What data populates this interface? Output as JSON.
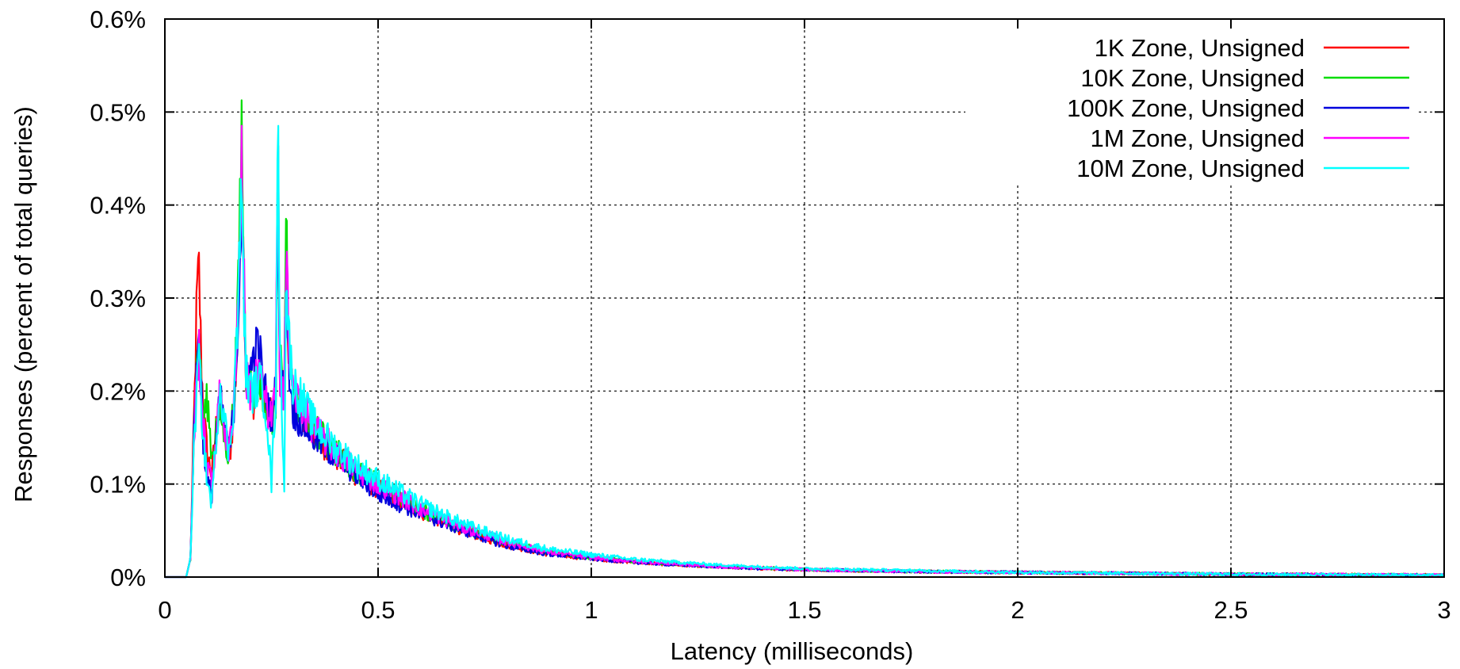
{
  "chart_data": {
    "type": "line",
    "title": "",
    "xlabel": "Latency (milliseconds)",
    "ylabel": "Responses (percent of total queries)",
    "xlim": [
      0,
      3
    ],
    "ylim": [
      0,
      0.6
    ],
    "grid": true,
    "legend_position": "top-right",
    "x_ticks": [
      0,
      0.5,
      1,
      1.5,
      2,
      2.5,
      3
    ],
    "x_tick_labels": [
      "0",
      "0.5",
      "1",
      "1.5",
      "2",
      "2.5",
      "3"
    ],
    "y_ticks": [
      0,
      0.1,
      0.2,
      0.3,
      0.4,
      0.5,
      0.6
    ],
    "y_tick_labels": [
      "0%",
      "0.1%",
      "0.2%",
      "0.3%",
      "0.4%",
      "0.5%",
      "0.6%"
    ],
    "series": [
      {
        "name": "1K Zone, Unsigned",
        "color": "#ff0000",
        "x": [
          0,
          0.05,
          0.06,
          0.07,
          0.075,
          0.08,
          0.085,
          0.09,
          0.1,
          0.11,
          0.12,
          0.13,
          0.14,
          0.15,
          0.16,
          0.17,
          0.18,
          0.185,
          0.19,
          0.2,
          0.21,
          0.22,
          0.23,
          0.24,
          0.25,
          0.26,
          0.265,
          0.27,
          0.28,
          0.285,
          0.29,
          0.3,
          0.35,
          0.4,
          0.45,
          0.5,
          0.6,
          0.7,
          0.8,
          0.9,
          1.0,
          1.1,
          1.2,
          1.3,
          1.4,
          1.5,
          1.75,
          2.0,
          2.5,
          3.0
        ],
        "y": [
          0,
          0,
          0.02,
          0.2,
          0.3,
          0.33,
          0.24,
          0.18,
          0.13,
          0.11,
          0.16,
          0.19,
          0.15,
          0.12,
          0.17,
          0.25,
          0.44,
          0.33,
          0.22,
          0.2,
          0.19,
          0.21,
          0.2,
          0.18,
          0.17,
          0.19,
          0.47,
          0.22,
          0.2,
          0.37,
          0.24,
          0.19,
          0.155,
          0.13,
          0.11,
          0.095,
          0.07,
          0.05,
          0.035,
          0.025,
          0.02,
          0.016,
          0.013,
          0.011,
          0.009,
          0.008,
          0.006,
          0.005,
          0.003,
          0.002
        ]
      },
      {
        "name": "10K Zone, Unsigned",
        "color": "#00dd00",
        "x": [
          0,
          0.05,
          0.06,
          0.07,
          0.075,
          0.08,
          0.085,
          0.09,
          0.1,
          0.11,
          0.12,
          0.13,
          0.14,
          0.15,
          0.16,
          0.17,
          0.18,
          0.185,
          0.19,
          0.2,
          0.21,
          0.22,
          0.23,
          0.24,
          0.25,
          0.26,
          0.265,
          0.27,
          0.28,
          0.285,
          0.29,
          0.3,
          0.35,
          0.4,
          0.45,
          0.5,
          0.6,
          0.7,
          0.8,
          0.9,
          1.0,
          1.1,
          1.2,
          1.3,
          1.4,
          1.5,
          1.75,
          2.0,
          2.5,
          3.0
        ],
        "y": [
          0,
          0,
          0.02,
          0.18,
          0.23,
          0.26,
          0.2,
          0.17,
          0.19,
          0.13,
          0.16,
          0.18,
          0.15,
          0.13,
          0.18,
          0.27,
          0.485,
          0.34,
          0.22,
          0.21,
          0.2,
          0.21,
          0.2,
          0.18,
          0.17,
          0.19,
          0.46,
          0.23,
          0.2,
          0.39,
          0.24,
          0.19,
          0.16,
          0.135,
          0.115,
          0.1,
          0.072,
          0.052,
          0.037,
          0.027,
          0.021,
          0.017,
          0.014,
          0.011,
          0.01,
          0.008,
          0.006,
          0.005,
          0.003,
          0.002
        ]
      },
      {
        "name": "100K Zone, Unsigned",
        "color": "#0000dd",
        "x": [
          0,
          0.05,
          0.06,
          0.07,
          0.075,
          0.08,
          0.085,
          0.09,
          0.1,
          0.11,
          0.12,
          0.13,
          0.14,
          0.15,
          0.16,
          0.17,
          0.18,
          0.185,
          0.19,
          0.2,
          0.21,
          0.22,
          0.23,
          0.24,
          0.25,
          0.26,
          0.265,
          0.27,
          0.28,
          0.285,
          0.29,
          0.3,
          0.35,
          0.4,
          0.45,
          0.5,
          0.6,
          0.7,
          0.8,
          0.9,
          1.0,
          1.1,
          1.2,
          1.3,
          1.4,
          1.5,
          1.75,
          2.0,
          2.5,
          3.0
        ],
        "y": [
          0,
          0,
          0.02,
          0.19,
          0.22,
          0.275,
          0.21,
          0.15,
          0.1,
          0.09,
          0.15,
          0.19,
          0.16,
          0.13,
          0.17,
          0.26,
          0.4,
          0.3,
          0.21,
          0.22,
          0.24,
          0.25,
          0.21,
          0.19,
          0.17,
          0.2,
          0.43,
          0.22,
          0.19,
          0.35,
          0.23,
          0.18,
          0.15,
          0.13,
          0.11,
          0.09,
          0.068,
          0.05,
          0.034,
          0.025,
          0.02,
          0.016,
          0.013,
          0.011,
          0.009,
          0.008,
          0.006,
          0.005,
          0.003,
          0.002
        ]
      },
      {
        "name": "1M Zone, Unsigned",
        "color": "#ff00ff",
        "x": [
          0,
          0.05,
          0.06,
          0.07,
          0.075,
          0.08,
          0.085,
          0.09,
          0.1,
          0.11,
          0.12,
          0.13,
          0.14,
          0.15,
          0.16,
          0.17,
          0.18,
          0.185,
          0.19,
          0.2,
          0.21,
          0.22,
          0.23,
          0.24,
          0.25,
          0.26,
          0.265,
          0.27,
          0.28,
          0.285,
          0.29,
          0.3,
          0.35,
          0.4,
          0.45,
          0.5,
          0.6,
          0.7,
          0.8,
          0.9,
          1.0,
          1.1,
          1.2,
          1.3,
          1.4,
          1.5,
          1.75,
          2.0,
          2.5,
          3.0
        ],
        "y": [
          0,
          0,
          0.02,
          0.17,
          0.21,
          0.25,
          0.2,
          0.16,
          0.12,
          0.1,
          0.15,
          0.2,
          0.16,
          0.13,
          0.18,
          0.27,
          0.45,
          0.33,
          0.22,
          0.2,
          0.21,
          0.22,
          0.2,
          0.18,
          0.17,
          0.2,
          0.44,
          0.22,
          0.2,
          0.36,
          0.25,
          0.2,
          0.16,
          0.135,
          0.115,
          0.1,
          0.073,
          0.053,
          0.038,
          0.027,
          0.021,
          0.017,
          0.014,
          0.011,
          0.01,
          0.008,
          0.006,
          0.005,
          0.003,
          0.002
        ]
      },
      {
        "name": "10M Zone, Unsigned",
        "color": "#00ffff",
        "x": [
          0,
          0.05,
          0.06,
          0.07,
          0.075,
          0.08,
          0.085,
          0.09,
          0.1,
          0.11,
          0.12,
          0.13,
          0.14,
          0.15,
          0.16,
          0.17,
          0.18,
          0.185,
          0.19,
          0.2,
          0.21,
          0.22,
          0.23,
          0.24,
          0.25,
          0.26,
          0.265,
          0.27,
          0.28,
          0.285,
          0.29,
          0.3,
          0.35,
          0.4,
          0.45,
          0.5,
          0.6,
          0.7,
          0.8,
          0.9,
          1.0,
          1.1,
          1.2,
          1.3,
          1.4,
          1.5,
          1.75,
          2.0,
          2.5,
          3.0
        ],
        "y": [
          0,
          0,
          0.02,
          0.16,
          0.2,
          0.24,
          0.19,
          0.15,
          0.1,
          0.08,
          0.15,
          0.21,
          0.17,
          0.13,
          0.18,
          0.27,
          0.42,
          0.31,
          0.22,
          0.2,
          0.2,
          0.21,
          0.2,
          0.17,
          0.1,
          0.2,
          0.485,
          0.25,
          0.1,
          0.34,
          0.26,
          0.21,
          0.165,
          0.14,
          0.12,
          0.105,
          0.078,
          0.057,
          0.041,
          0.03,
          0.024,
          0.019,
          0.016,
          0.013,
          0.011,
          0.009,
          0.007,
          0.005,
          0.003,
          0.002
        ]
      }
    ]
  }
}
